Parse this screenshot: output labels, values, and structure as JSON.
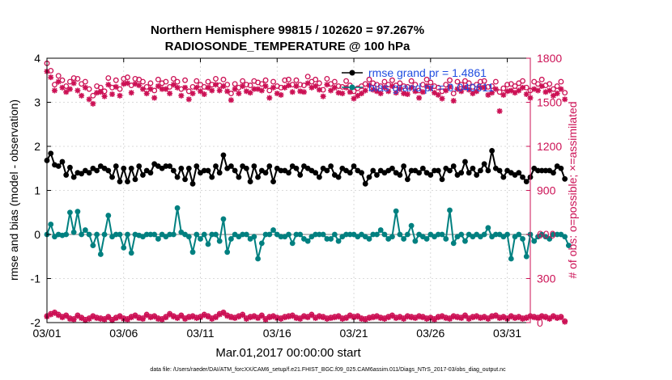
{
  "colors": {
    "rmse": "#000000",
    "bias": "#008080",
    "obs": "#cc1155",
    "zero_line": "#bdbdbd",
    "grid": "#d0d0d0",
    "legend_text": "#1f4de0"
  },
  "chart_data": {
    "type": "line",
    "title": "Northern Hemisphere 99815 / 102620 = 97.267%",
    "subtitle": "RADIOSONDE_TEMPERATURE @ 100 hPa",
    "xlabel": "Mar.01,2017 00:00:00 start",
    "ylabel": "rmse and bias (model - observation)",
    "y2label": "# of obs: o=possible; ×=assimilated",
    "footer": "data file: /Users/raeder/DAI/ATM_forcXX/CAM6_setup/f.e21.FHIST_BGC.f09_025.CAM6assim.011/Diags_NTrS_2017-03/obs_diag_output.nc",
    "xlim": [
      0,
      31.5
    ],
    "ylim": [
      -2,
      4
    ],
    "y2lim": [
      0,
      1800
    ],
    "x_ticks": [
      0,
      5,
      10,
      15,
      20,
      25,
      30
    ],
    "x_tick_labels": [
      "03/01",
      "03/06",
      "03/11",
      "03/16",
      "03/21",
      "03/26",
      "03/31"
    ],
    "y_ticks": [
      -2,
      -1,
      0,
      1,
      2,
      3,
      4
    ],
    "y_tick_labels": [
      "-2",
      "-1",
      "0",
      "1",
      "2",
      "3",
      "4"
    ],
    "y2_ticks": [
      0,
      300,
      600,
      900,
      1200,
      1500,
      1800
    ],
    "y2_tick_labels": [
      "0",
      "300",
      "600",
      "900",
      "1200",
      "1500",
      "1800"
    ],
    "grid": true,
    "legend": {
      "placement": "top-right",
      "entries": [
        "rmse grand pr = 1.4861",
        "bias grand pr = 0.040611"
      ]
    },
    "x_step_days": 0.25,
    "series": [
      {
        "name": "rmse",
        "axis": "left",
        "marker": "dot",
        "values": [
          1.68,
          1.84,
          1.58,
          1.55,
          1.65,
          1.35,
          1.52,
          1.3,
          1.4,
          1.38,
          1.45,
          1.4,
          1.5,
          1.45,
          1.55,
          1.5,
          1.45,
          1.3,
          1.55,
          1.2,
          1.5,
          1.2,
          1.5,
          1.25,
          1.55,
          1.35,
          1.45,
          1.4,
          1.6,
          1.55,
          1.5,
          1.55,
          1.55,
          1.45,
          1.3,
          1.5,
          1.25,
          1.5,
          1.15,
          1.55,
          1.4,
          1.45,
          1.45,
          1.3,
          1.55,
          1.4,
          1.8,
          1.5,
          1.55,
          1.45,
          1.3,
          1.55,
          1.5,
          1.2,
          1.55,
          1.3,
          1.45,
          1.4,
          1.55,
          1.2,
          1.5,
          1.45,
          1.45,
          1.4,
          1.55,
          1.5,
          1.35,
          1.55,
          1.5,
          1.45,
          1.4,
          1.3,
          1.5,
          1.45,
          1.55,
          1.35,
          1.3,
          1.5,
          1.45,
          1.4,
          1.55,
          1.45,
          1.4,
          1.15,
          1.3,
          1.45,
          1.35,
          1.45,
          1.4,
          1.45,
          1.5,
          1.4,
          1.35,
          1.55,
          1.25,
          1.45,
          1.45,
          1.4,
          1.5,
          1.4,
          1.35,
          1.45,
          1.45,
          1.25,
          1.5,
          1.45,
          1.55,
          1.35,
          1.4,
          1.65,
          1.4,
          1.5,
          1.35,
          1.45,
          1.6,
          1.45,
          1.9,
          1.5,
          1.45,
          1.3,
          1.45,
          1.4,
          1.35,
          1.4,
          1.3,
          1.2,
          1.3,
          1.5,
          1.45,
          1.45,
          1.45,
          1.45,
          1.4,
          1.55,
          1.5,
          1.26
        ]
      },
      {
        "name": "bias",
        "axis": "left",
        "marker": "dot",
        "values": [
          0.0,
          0.23,
          -0.05,
          0.0,
          -0.02,
          0.0,
          0.5,
          0.05,
          0.52,
          0.0,
          0.1,
          0.0,
          -0.25,
          0.0,
          -0.45,
          0.0,
          0.43,
          -0.05,
          0.0,
          0.0,
          -0.3,
          0.0,
          -0.42,
          0.0,
          -0.02,
          -0.05,
          0.0,
          0.0,
          0.0,
          -0.1,
          0.0,
          -0.05,
          0.0,
          0.0,
          0.6,
          0.05,
          0.0,
          -0.05,
          -0.4,
          0.0,
          -0.1,
          0.0,
          -0.22,
          0.0,
          0.0,
          -0.15,
          0.35,
          -0.4,
          -0.1,
          0.0,
          -0.05,
          0.0,
          0.0,
          -0.1,
          -0.05,
          -0.55,
          -0.2,
          0.0,
          0.0,
          0.1,
          0.0,
          -0.05,
          -0.05,
          0.0,
          -0.2,
          0.0,
          0.0,
          -0.1,
          -0.15,
          -0.05,
          0.0,
          0.0,
          0.0,
          -0.1,
          -0.1,
          0.0,
          -0.15,
          -0.05,
          0.0,
          0.0,
          0.0,
          -0.05,
          0.0,
          -0.05,
          -0.1,
          0.0,
          0.0,
          0.1,
          0.0,
          -0.1,
          -0.05,
          0.53,
          0.0,
          -0.1,
          0.0,
          0.2,
          -0.15,
          0.0,
          -0.05,
          -0.1,
          0.0,
          -0.05,
          0.0,
          0.0,
          -0.1,
          0.55,
          -0.2,
          -0.05,
          0.0,
          -0.15,
          0.0,
          -0.05,
          0.0,
          -0.05,
          0.0,
          0.15,
          -0.05,
          0.0,
          0.0,
          -0.05,
          0.0,
          -0.55,
          -0.05,
          0.0,
          -0.1,
          -0.5,
          0.0,
          -0.15,
          -0.05,
          0.0,
          -0.05,
          -0.1,
          0.0,
          0.0,
          0.0,
          -0.05,
          -0.25
        ]
      },
      {
        "name": "obs possible",
        "axis": "right",
        "marker": "circle",
        "sampling": "top points shown",
        "values": [
          1765,
          1715,
          1620,
          1680,
          1650,
          1610,
          1640,
          1665,
          1660,
          1625,
          1640,
          1590,
          1545,
          1610,
          1600,
          1575,
          1665,
          1600,
          1650,
          1590,
          1660,
          1670,
          1615,
          1660,
          1655,
          1640,
          1605,
          1630,
          1580,
          1655,
          1630,
          1640,
          1605,
          1660,
          1640,
          1590,
          1650,
          1575,
          1605,
          1645,
          1620,
          1605,
          1640,
          1620,
          1660,
          1615,
          1655,
          1620,
          1560,
          1625,
          1600,
          1645,
          1620,
          1615,
          1645,
          1635,
          1625,
          1650,
          1580,
          1640,
          1610,
          1600,
          1650,
          1655,
          1620,
          1650,
          1620,
          1615,
          1675,
          1640,
          1655,
          1630,
          1585,
          1660,
          1625,
          1640,
          1610,
          1605,
          1645,
          1615,
          1575,
          1595,
          1610,
          1625,
          1655,
          1630,
          1620,
          1610,
          1640,
          1620,
          1650,
          1615,
          1630,
          1610,
          1605,
          1645,
          1620,
          1580,
          1620,
          1655,
          1635,
          1610,
          1600,
          1575,
          1620,
          1650,
          1560,
          1640,
          1620,
          1645,
          1630,
          1605,
          1620,
          1640,
          1645,
          1605,
          1610,
          1640,
          1570,
          1595,
          1620,
          1625,
          1610,
          1630,
          1645,
          1600,
          1580,
          1640,
          1625,
          1655,
          1615,
          1625,
          1590,
          1610,
          1640,
          1565
        ]
      },
      {
        "name": "obs assimilated",
        "axis": "right",
        "marker": "asterisk",
        "sampling": "top points shown",
        "values": [
          1710,
          1670,
          1580,
          1640,
          1600,
          1570,
          1590,
          1630,
          1580,
          1545,
          1600,
          1520,
          1490,
          1565,
          1570,
          1540,
          1620,
          1555,
          1605,
          1545,
          1625,
          1630,
          1565,
          1625,
          1615,
          1590,
          1560,
          1590,
          1530,
          1610,
          1590,
          1590,
          1560,
          1620,
          1600,
          1545,
          1600,
          1520,
          1560,
          1600,
          1575,
          1555,
          1600,
          1580,
          1620,
          1580,
          1610,
          1575,
          1515,
          1590,
          1560,
          1610,
          1575,
          1565,
          1590,
          1590,
          1580,
          1610,
          1530,
          1600,
          1560,
          1550,
          1600,
          1615,
          1570,
          1610,
          1575,
          1570,
          1630,
          1600,
          1610,
          1585,
          1540,
          1620,
          1580,
          1600,
          1565,
          1560,
          1600,
          1570,
          1525,
          1545,
          1560,
          1580,
          1615,
          1585,
          1575,
          1560,
          1600,
          1575,
          1610,
          1565,
          1590,
          1560,
          1555,
          1600,
          1575,
          1530,
          1570,
          1610,
          1595,
          1565,
          1550,
          1525,
          1580,
          1605,
          1510,
          1590,
          1575,
          1600,
          1585,
          1560,
          1575,
          1600,
          1600,
          1550,
          1565,
          1590,
          1440,
          1550,
          1575,
          1580,
          1565,
          1580,
          1600,
          1555,
          1530,
          1590,
          1580,
          1610,
          1570,
          1580,
          1545,
          1560,
          1590,
          1520
        ]
      },
      {
        "name": "obs possible (low)",
        "axis": "right",
        "marker": "circle",
        "sampling": "bottom points shown",
        "values": [
          45,
          60,
          70,
          55,
          40,
          50,
          30,
          25,
          50,
          35,
          20,
          30,
          45,
          35,
          30,
          25,
          40,
          20,
          35,
          45,
          30,
          25,
          40,
          50,
          35,
          30,
          55,
          40,
          45,
          30,
          25,
          40,
          60,
          45,
          35,
          50,
          30,
          40,
          45,
          35,
          40,
          55,
          45,
          30,
          40,
          60,
          70,
          50,
          40,
          35,
          45,
          55,
          30,
          40,
          45,
          35,
          50,
          25,
          40,
          45,
          35,
          30,
          40,
          45,
          50,
          35,
          30,
          45,
          40,
          55,
          35,
          45,
          40,
          30,
          35,
          40,
          45,
          30,
          35,
          50,
          40,
          45,
          30,
          25,
          35,
          40,
          45,
          35,
          30,
          40,
          50,
          35,
          40,
          30,
          45,
          40,
          35,
          45,
          40,
          30,
          35,
          25,
          40,
          45,
          35,
          30,
          45,
          40,
          35,
          50,
          30,
          40,
          45,
          35,
          40,
          30,
          45,
          50,
          35,
          40,
          30,
          45,
          35,
          40,
          30,
          35,
          45,
          40,
          35,
          45,
          40,
          30,
          45,
          35,
          40,
          10
        ]
      },
      {
        "name": "obs assimilated (low)",
        "axis": "right",
        "marker": "asterisk",
        "sampling": "bottom points shown",
        "values": [
          40,
          55,
          65,
          50,
          35,
          45,
          25,
          20,
          45,
          30,
          15,
          25,
          40,
          30,
          25,
          20,
          35,
          15,
          30,
          40,
          25,
          20,
          35,
          45,
          30,
          25,
          50,
          35,
          40,
          25,
          20,
          35,
          55,
          40,
          30,
          45,
          25,
          35,
          40,
          30,
          35,
          50,
          40,
          25,
          35,
          55,
          65,
          45,
          35,
          30,
          40,
          50,
          25,
          35,
          40,
          30,
          45,
          20,
          35,
          40,
          30,
          25,
          35,
          40,
          45,
          30,
          25,
          40,
          35,
          50,
          30,
          40,
          35,
          25,
          30,
          35,
          40,
          25,
          30,
          45,
          35,
          40,
          25,
          20,
          30,
          35,
          40,
          30,
          25,
          35,
          45,
          30,
          35,
          25,
          40,
          35,
          30,
          40,
          35,
          25,
          30,
          20,
          35,
          40,
          30,
          25,
          40,
          35,
          30,
          45,
          25,
          35,
          40,
          30,
          35,
          25,
          40,
          45,
          30,
          35,
          25,
          40,
          30,
          35,
          25,
          30,
          40,
          35,
          30,
          40,
          35,
          25,
          40,
          30,
          35,
          5
        ]
      }
    ]
  }
}
